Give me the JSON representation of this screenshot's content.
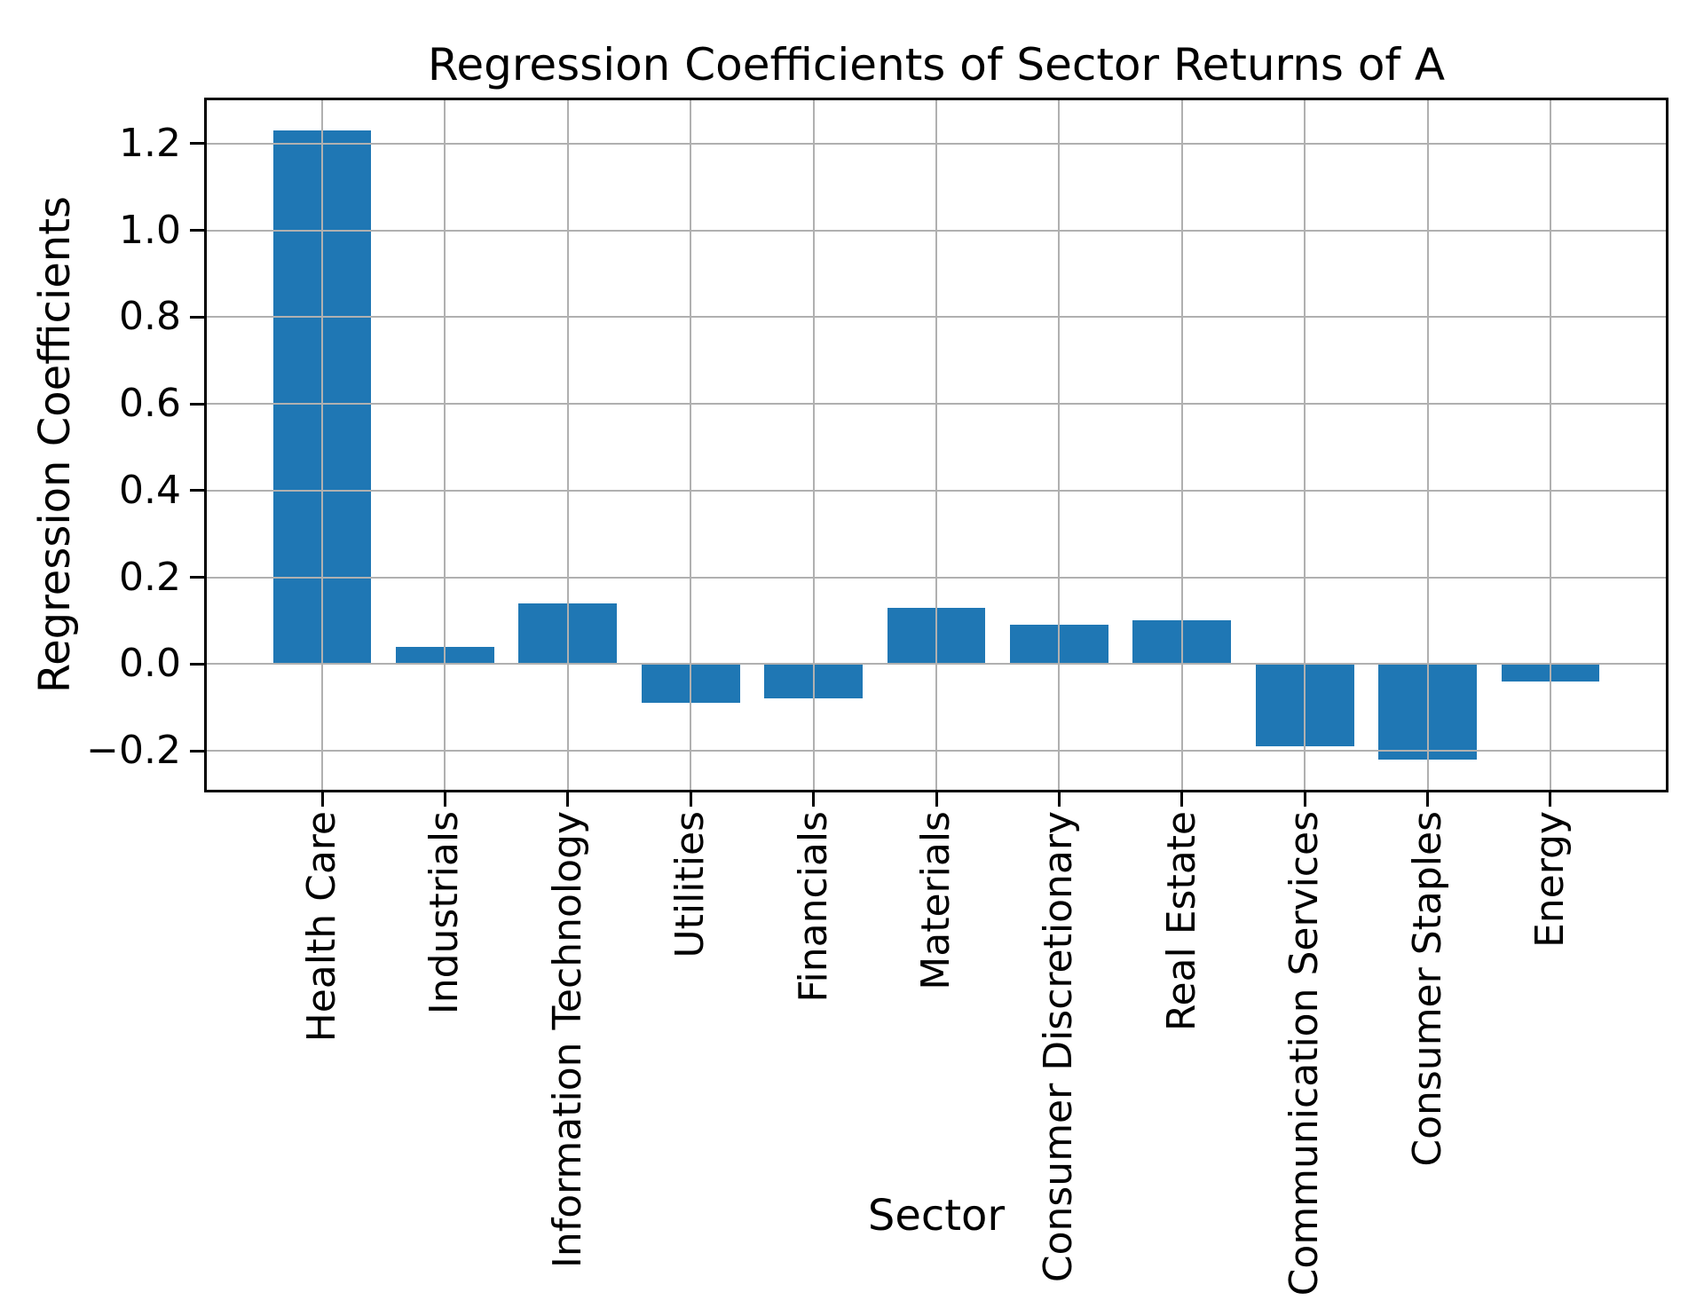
{
  "figure": {
    "background": "#ffffff"
  },
  "chart_data": {
    "type": "bar",
    "title": "Regression Coefficients of Sector Returns of A",
    "xlabel": "Sector",
    "ylabel": "Regression Coefficients",
    "categories": [
      "Health Care",
      "Industrials",
      "Information Technology",
      "Utilities",
      "Financials",
      "Materials",
      "Consumer Discretionary",
      "Real Estate",
      "Communication Services",
      "Consumer Staples",
      "Energy"
    ],
    "values": [
      1.23,
      0.04,
      0.14,
      -0.09,
      -0.08,
      0.13,
      0.09,
      0.1,
      -0.19,
      -0.22,
      -0.04
    ],
    "yticks": [
      {
        "value": 1.2,
        "label": "1.2"
      },
      {
        "value": 1.0,
        "label": "1.0"
      },
      {
        "value": 0.8,
        "label": "0.8"
      },
      {
        "value": 0.6,
        "label": "0.6"
      },
      {
        "value": 0.4,
        "label": "0.4"
      },
      {
        "value": 0.2,
        "label": "0.2"
      },
      {
        "value": 0.0,
        "label": "0.0"
      },
      {
        "value": -0.2,
        "label": "−0.2"
      }
    ],
    "ylim": [
      -0.29,
      1.3
    ],
    "x_margin": 0.94,
    "bar_width": 0.8,
    "grid": "on",
    "grid_over_bars": true,
    "legend": "none",
    "bar_color": "#1f77b4",
    "grid_color": "#b0b0b0",
    "axis_color": "#000000",
    "text_color": "#000000"
  }
}
